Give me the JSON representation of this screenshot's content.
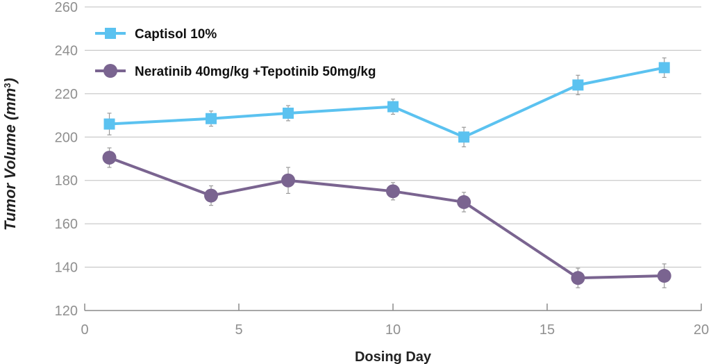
{
  "chart_data": {
    "type": "line",
    "title": "",
    "xlabel": "Dosing Day",
    "ylabel": "Tumor Volume (mm³)",
    "ylabel_main": "Tumor Volume ",
    "ylabel_unit": "(mm",
    "ylabel_sup": "3",
    "ylabel_close": ")",
    "xlim": [
      0,
      20
    ],
    "ylim": [
      120,
      260
    ],
    "xticks": [
      0,
      5,
      10,
      15,
      20
    ],
    "yticks": [
      120,
      140,
      160,
      180,
      200,
      220,
      240,
      260
    ],
    "grid": "horizontal",
    "legend_position": "top-left",
    "series": [
      {
        "name": "Captisol 10%",
        "color": "#5bc2f0",
        "marker": "square",
        "x": [
          0.8,
          4.1,
          6.6,
          10.0,
          12.3,
          16.0,
          18.8
        ],
        "y": [
          206,
          208.5,
          211,
          214,
          200,
          224,
          232
        ],
        "error": [
          5,
          3.5,
          3.5,
          3.5,
          4.5,
          4.5,
          4.5
        ]
      },
      {
        "name": "Neratinib 40mg/kg +Tepotinib 50mg/kg",
        "color": "#7a6490",
        "marker": "circle",
        "x": [
          0.8,
          4.1,
          6.6,
          10.0,
          12.3,
          16.0,
          18.8
        ],
        "y": [
          190.5,
          173,
          180,
          175,
          170,
          135,
          136
        ],
        "error": [
          4.5,
          4.5,
          6,
          4,
          4.5,
          4.5,
          5.5
        ]
      }
    ]
  }
}
